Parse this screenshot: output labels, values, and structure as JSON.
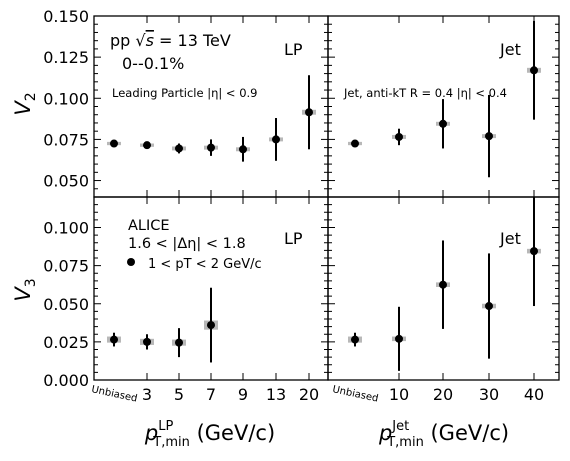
{
  "chart_data": [
    {
      "type": "scatter",
      "panel": "top-left",
      "ylabel": "V",
      "ylabel_sub": "2",
      "ylim": [
        0.04,
        0.15
      ],
      "yticks": [
        "0.050",
        "0.075",
        "0.100",
        "0.125",
        "0.150"
      ],
      "ytick_values": [
        0.05,
        0.075,
        0.1,
        0.125,
        0.15
      ],
      "x_categories": [
        "Unbiased",
        "3",
        "5",
        "7",
        "9",
        "13",
        "20"
      ],
      "annotations": {
        "system_prefix": "pp ",
        "sqrt_s_label": "s",
        "energy": " = 13 TeV",
        "centrality": "0--0.1%",
        "tag": "LP",
        "selection": "Leading Particle |η| < 0.9"
      },
      "points": [
        {
          "x": "Unbiased",
          "y": 0.0725,
          "err": 0.002,
          "sys": 0.001
        },
        {
          "x": "3",
          "y": 0.0715,
          "err": 0.002,
          "sys": 0.001
        },
        {
          "x": "5",
          "y": 0.0695,
          "err": 0.003,
          "sys": 0.0012
        },
        {
          "x": "7",
          "y": 0.07,
          "err": 0.005,
          "sys": 0.0012
        },
        {
          "x": "9",
          "y": 0.069,
          "err": 0.0075,
          "sys": 0.0012
        },
        {
          "x": "13",
          "y": 0.075,
          "err": 0.013,
          "sys": 0.0012
        },
        {
          "x": "20",
          "y": 0.0915,
          "err": 0.0225,
          "sys": 0.0015
        }
      ]
    },
    {
      "type": "scatter",
      "panel": "top-right",
      "ylim": [
        0.04,
        0.15
      ],
      "x_categories": [
        "Unbiased",
        "10",
        "20",
        "30",
        "40"
      ],
      "annotations": {
        "tag": "Jet",
        "selection": "Jet, anti-kT R = 0.4 |η| < 0.4"
      },
      "points": [
        {
          "x": "Unbiased",
          "y": 0.0725,
          "err": 0.002,
          "sys": 0.001
        },
        {
          "x": "10",
          "y": 0.0765,
          "err": 0.005,
          "sys": 0.0012
        },
        {
          "x": "20",
          "y": 0.0845,
          "err": 0.015,
          "sys": 0.0012
        },
        {
          "x": "30",
          "y": 0.077,
          "err": 0.025,
          "sys": 0.0012
        },
        {
          "x": "40",
          "y": 0.117,
          "err": 0.03,
          "sys": 0.0015
        }
      ]
    },
    {
      "type": "scatter",
      "panel": "bottom-left",
      "ylabel": "V",
      "ylabel_sub": "3",
      "ylim": [
        0.0,
        0.12
      ],
      "yticks": [
        "0.000",
        "0.025",
        "0.050",
        "0.075",
        "0.100"
      ],
      "ytick_values": [
        0.0,
        0.025,
        0.05,
        0.075,
        0.1
      ],
      "xlabel": "p",
      "xlabel_sup": "LP",
      "xlabel_sub": "T,min",
      "xlabel_unit": " (GeV/c)",
      "x_categories": [
        "Unbiased",
        "3",
        "5",
        "7",
        "9",
        "13",
        "20"
      ],
      "annotations": {
        "experiment": "ALICE",
        "eta_gap": "1.6 < |Δη| < 1.8",
        "legend_entry": "1 < pT < 2 GeV/c",
        "tag": "LP"
      },
      "points": [
        {
          "x": "Unbiased",
          "y": 0.0265,
          "err": 0.0045,
          "sys": 0.002
        },
        {
          "x": "3",
          "y": 0.025,
          "err": 0.005,
          "sys": 0.002
        },
        {
          "x": "5",
          "y": 0.0245,
          "err": 0.0095,
          "sys": 0.002
        },
        {
          "x": "7",
          "y": 0.036,
          "err": 0.0245,
          "sys": 0.003
        }
      ]
    },
    {
      "type": "scatter",
      "panel": "bottom-right",
      "ylim": [
        0.0,
        0.12
      ],
      "xlabel": "p",
      "xlabel_sup": "Jet",
      "xlabel_sub": "T,min",
      "xlabel_unit": " (GeV/c)",
      "x_categories": [
        "Unbiased",
        "10",
        "20",
        "30",
        "40"
      ],
      "annotations": {
        "tag": "Jet"
      },
      "points": [
        {
          "x": "Unbiased",
          "y": 0.0265,
          "err": 0.0045,
          "sys": 0.002
        },
        {
          "x": "10",
          "y": 0.027,
          "err": 0.021,
          "sys": 0.0015
        },
        {
          "x": "20",
          "y": 0.0625,
          "err": 0.029,
          "sys": 0.0015
        },
        {
          "x": "30",
          "y": 0.0485,
          "err": 0.0345,
          "sys": 0.0015
        },
        {
          "x": "40",
          "y": 0.0845,
          "err": 0.036,
          "sys": 0.0015
        }
      ]
    }
  ]
}
